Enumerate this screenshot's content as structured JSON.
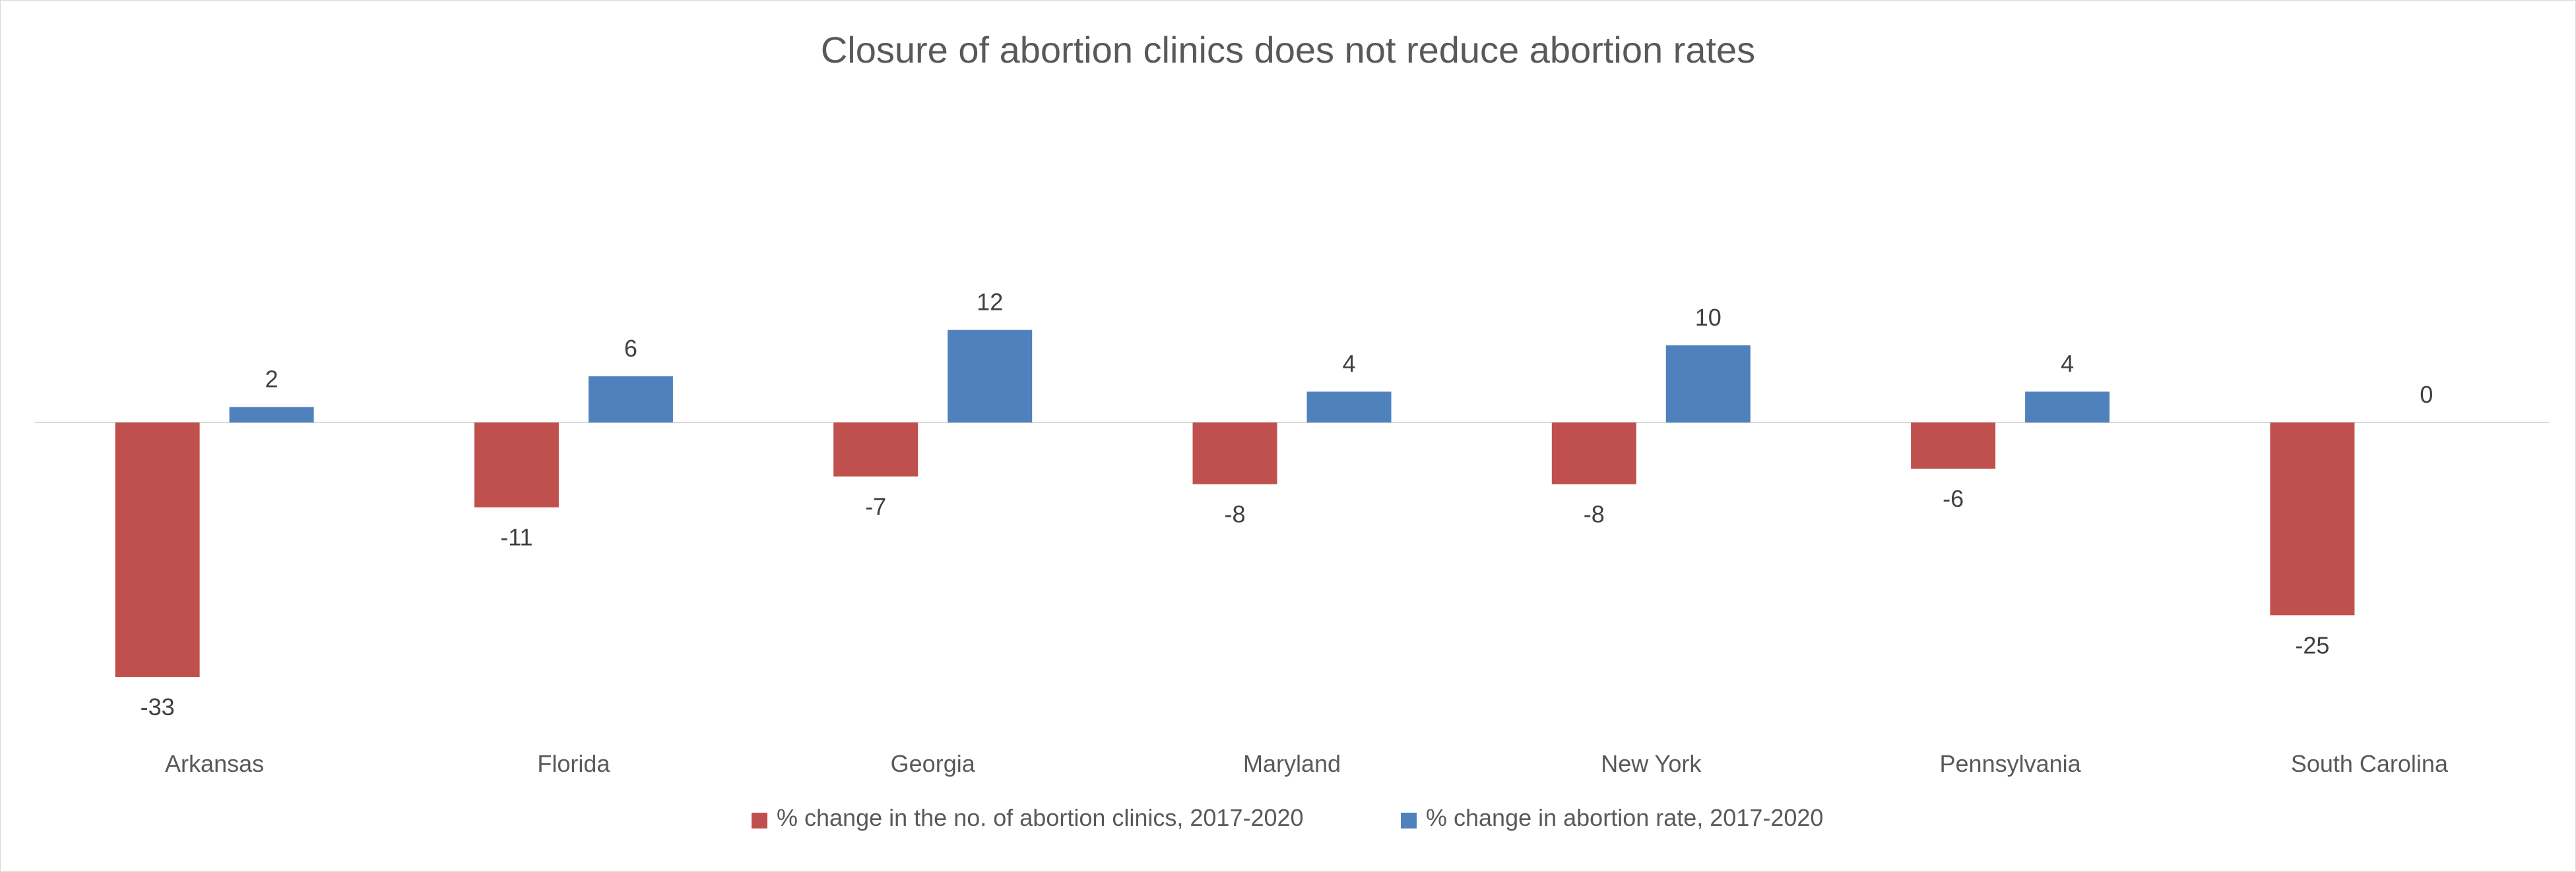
{
  "chart_data": {
    "type": "bar",
    "title": "Closure of abortion clinics does not reduce abortion rates",
    "xlabel": "",
    "ylabel": "",
    "categories": [
      "Arkansas",
      "Florida",
      "Georgia",
      "Maryland",
      "New York",
      "Pennsylvania",
      "South Carolina"
    ],
    "series": [
      {
        "name": "% change in the no. of abortion clinics, 2017-2020",
        "color": "#c0504d",
        "values": [
          -33,
          -11,
          -7,
          -8,
          -8,
          -6,
          -25
        ]
      },
      {
        "name": "% change in abortion rate, 2017-2020",
        "color": "#4f81bd",
        "values": [
          2,
          6,
          12,
          4,
          10,
          4,
          0
        ]
      }
    ],
    "ylim": [
      -33,
      12
    ],
    "grid": false,
    "legend_position": "bottom",
    "data_labels": true
  }
}
